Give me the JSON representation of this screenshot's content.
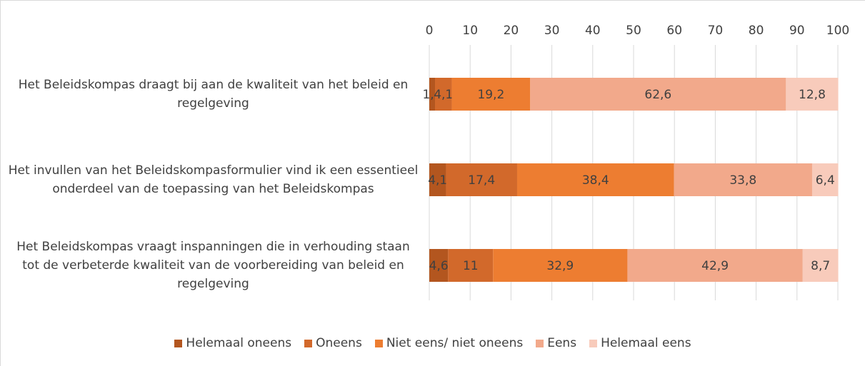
{
  "chart_data": {
    "type": "stacked-bar-horizontal",
    "categories": [
      "Het Beleidskompas draagt bij aan de kwaliteit van het beleid en regelgeving",
      "Het invullen van het Beleidskompasformulier vind ik een essentieel onderdeel van de toepassing van het Beleidskompas",
      "Het Beleidskompas vraagt inspanningen die in verhouding staan tot de verbeterde kwaliteit van de voorbereiding van beleid en regelgeving"
    ],
    "series": [
      {
        "name": "Helemaal oneens",
        "color": "#b3561f",
        "values": [
          1.4,
          4.1,
          4.6
        ],
        "value_labels": [
          "1,4",
          "4,1",
          "4,6"
        ]
      },
      {
        "name": "Oneens",
        "color": "#d2692b",
        "values": [
          4.1,
          17.4,
          11
        ],
        "value_labels": [
          "4,1",
          "17,4",
          "11"
        ]
      },
      {
        "name": "Niet eens/ niet oneens",
        "color": "#ed7d31",
        "values": [
          19.2,
          38.4,
          32.9
        ],
        "value_labels": [
          "19,2",
          "38,4",
          "32,9"
        ]
      },
      {
        "name": "Eens",
        "color": "#f2a98b",
        "values": [
          62.6,
          33.8,
          42.9
        ],
        "value_labels": [
          "62,6",
          "33,8",
          "42,9"
        ]
      },
      {
        "name": "Helemaal eens",
        "color": "#f8cbbb",
        "values": [
          12.8,
          6.4,
          8.7
        ],
        "value_labels": [
          "12,8",
          "6,4",
          "8,7"
        ]
      }
    ],
    "xlim": [
      0,
      100
    ],
    "xticks": [
      0,
      10,
      20,
      30,
      40,
      50,
      60,
      70,
      80,
      90,
      100
    ],
    "grid": true,
    "legend": "bottom"
  }
}
